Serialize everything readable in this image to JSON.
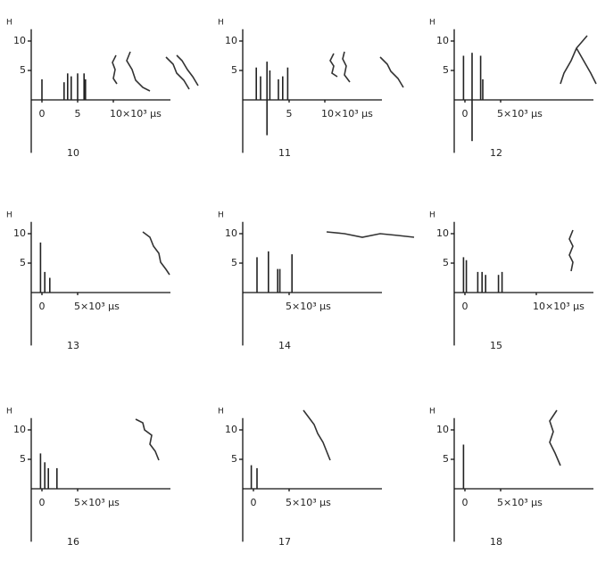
{
  "chart_data": [
    {
      "type": "stem",
      "title": "10",
      "ylabel": "H",
      "xlim": [
        -1.5,
        18
      ],
      "ylim": [
        -9,
        12
      ],
      "yticks": [
        5,
        10
      ],
      "xticks": [
        0,
        5,
        {
          "value": 10,
          "label": "10×10³ μs"
        }
      ],
      "x": [
        0,
        3.1,
        3.6,
        4.1,
        5,
        5.9,
        6.1
      ],
      "values": [
        3.5,
        3,
        4.5,
        4,
        4.5,
        4.5,
        3.5
      ]
    },
    {
      "type": "stem",
      "title": "11",
      "ylabel": "H",
      "xlim": [
        -1.5,
        18
      ],
      "ylim": [
        -9,
        12
      ],
      "yticks": [
        5,
        10
      ],
      "xticks": [
        5,
        {
          "value": 10,
          "label": "10×10³ μs"
        }
      ],
      "x": [
        0.4,
        1,
        1.9,
        1.9,
        2.3,
        3.5,
        4.1,
        4.8
      ],
      "values": [
        5.5,
        4,
        6.5,
        -6,
        5,
        3.5,
        4,
        5.5
      ]
    },
    {
      "type": "stem",
      "title": "12",
      "ylabel": "H",
      "xlim": [
        -1.5,
        18
      ],
      "ylim": [
        -9,
        12
      ],
      "yticks": [
        5,
        10
      ],
      "xticks": [
        0,
        {
          "value": 5,
          "label": "5×10³ μs"
        }
      ],
      "x": [
        -0.2,
        1,
        1,
        2.2,
        2.5
      ],
      "values": [
        7.5,
        8,
        -7,
        7.5,
        3.5
      ]
    },
    {
      "type": "stem",
      "title": "13",
      "ylabel": "H",
      "xlim": [
        -1.5,
        18
      ],
      "ylim": [
        -9,
        12
      ],
      "yticks": [
        5,
        10
      ],
      "xticks": [
        0,
        {
          "value": 5,
          "label": "5×10³ μs"
        }
      ],
      "x": [
        -0.2,
        0.4,
        1.1
      ],
      "values": [
        8.5,
        3.5,
        2.5
      ]
    },
    {
      "type": "stem",
      "title": "14",
      "ylabel": "H",
      "xlim": [
        -1.5,
        18
      ],
      "ylim": [
        -9,
        12
      ],
      "yticks": [
        5,
        10
      ],
      "xticks": [
        {
          "value": 5,
          "label": "5×10³ μs"
        }
      ],
      "x": [
        0.5,
        2.1,
        3.4,
        3.7,
        5.4
      ],
      "values": [
        6,
        7,
        4,
        4,
        6.5
      ]
    },
    {
      "type": "stem",
      "title": "15",
      "ylabel": "H",
      "xlim": [
        -1.5,
        18
      ],
      "ylim": [
        -9,
        12
      ],
      "yticks": [
        5,
        10
      ],
      "xticks": [
        0,
        {
          "value": 10,
          "label": "10×10³ μs"
        }
      ],
      "x": [
        -0.2,
        0.2,
        1.8,
        2.4,
        2.9,
        4.7,
        5.2
      ],
      "values": [
        6,
        5.5,
        3.5,
        3.5,
        3,
        3,
        3.5
      ]
    },
    {
      "type": "stem",
      "title": "16",
      "ylabel": "H",
      "xlim": [
        -1.5,
        18
      ],
      "ylim": [
        -9,
        12
      ],
      "yticks": [
        5,
        10
      ],
      "xticks": [
        0,
        {
          "value": 5,
          "label": "5×10³ μs"
        }
      ],
      "x": [
        -0.2,
        0.4,
        0.9,
        2.1
      ],
      "values": [
        6,
        4.5,
        3.5,
        3.5
      ]
    },
    {
      "type": "stem",
      "title": "17",
      "ylabel": "H",
      "xlim": [
        -1.5,
        18
      ],
      "ylim": [
        -9,
        12
      ],
      "yticks": [
        5,
        10
      ],
      "xticks": [
        0,
        {
          "value": 5,
          "label": "5×10³ μs"
        }
      ],
      "x": [
        -0.3,
        0.5
      ],
      "values": [
        4,
        3.5
      ]
    },
    {
      "type": "stem",
      "title": "18",
      "ylabel": "H",
      "xlim": [
        -1.5,
        18
      ],
      "ylim": [
        -9,
        12
      ],
      "yticks": [
        5,
        10
      ],
      "xticks": [
        0,
        {
          "value": 5,
          "label": "5×10³ μs"
        }
      ],
      "x": [
        -0.2
      ],
      "values": [
        7.5
      ]
    }
  ]
}
